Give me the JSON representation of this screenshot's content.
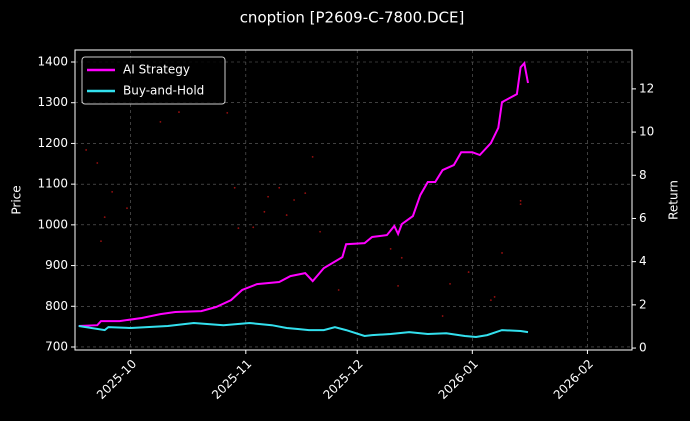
{
  "chart_data": {
    "type": "line",
    "title": "cnoption [P2609-C-7800.DCE]",
    "ylabel": "Price",
    "y2label": "Return",
    "xlim": [
      -15,
      135
    ],
    "xticks": [
      {
        "value": 0,
        "label": "2025-10"
      },
      {
        "value": 31,
        "label": "2025-11"
      },
      {
        "value": 61,
        "label": "2025-12"
      },
      {
        "value": 92,
        "label": "2026-01"
      },
      {
        "value": 123,
        "label": "2026-02"
      }
    ],
    "ylim": [
      692.6,
      1429.5
    ],
    "yticks": [
      700,
      800,
      900,
      1000,
      1100,
      1200,
      1300,
      1400
    ],
    "y2lim": [
      -0.09,
      13.8
    ],
    "y2ticks": [
      0,
      2,
      4,
      6,
      8,
      10,
      12
    ],
    "grid": true,
    "legend": "upper left",
    "price_points": {
      "color": "#ff1a1a",
      "x": [
        -12,
        -9,
        -7,
        -8,
        -5,
        -1,
        8,
        13,
        26,
        28,
        29,
        33,
        36,
        37,
        40,
        42,
        44,
        47,
        49,
        51,
        56,
        70,
        73,
        72,
        84,
        86,
        91,
        97,
        98,
        100,
        105,
        105
      ],
      "values": [
        1184,
        1152,
        1019,
        960,
        1081,
        1041,
        1253,
        1277,
        1275,
        1091,
        992,
        994,
        1032,
        1069,
        1091,
        1024,
        1061,
        1078,
        1167,
        983,
        840,
        941,
        919,
        850,
        776,
        855,
        884,
        815,
        823,
        931,
        1051,
        1059
      ]
    },
    "series": [
      {
        "name": "AI Strategy",
        "color": "#ff00ff",
        "axis": "y2",
        "x": [
          -14,
          -9,
          -8,
          -3,
          3,
          8,
          12,
          19,
          23,
          27,
          30,
          34,
          40,
          43,
          47,
          49,
          52,
          57,
          58,
          63,
          65,
          69,
          71,
          72,
          73,
          76,
          78,
          80,
          82,
          84,
          87,
          89,
          92,
          94,
          97,
          99,
          100,
          104,
          105,
          106,
          107
        ],
        "values": [
          1.02,
          1.06,
          1.25,
          1.25,
          1.39,
          1.57,
          1.67,
          1.71,
          1.9,
          2.22,
          2.69,
          2.96,
          3.06,
          3.33,
          3.47,
          3.1,
          3.7,
          4.21,
          4.81,
          4.86,
          5.14,
          5.23,
          5.65,
          5.28,
          5.74,
          6.11,
          7.08,
          7.69,
          7.69,
          8.24,
          8.47,
          9.07,
          9.07,
          8.94,
          9.49,
          10.2,
          11.39,
          11.76,
          13.0,
          13.19,
          12.27
        ]
      },
      {
        "name": "Buy-and-Hold",
        "color": "#33e0ee",
        "axis": "y2",
        "x": [
          -14,
          -7,
          -6,
          0,
          10,
          17,
          25,
          32,
          38,
          42,
          45,
          48,
          52,
          55,
          58,
          63,
          65,
          70,
          75,
          80,
          85,
          90,
          93,
          96,
          100,
          105,
          107
        ],
        "values": [
          1.02,
          0.83,
          0.97,
          0.93,
          1.02,
          1.16,
          1.06,
          1.16,
          1.06,
          0.93,
          0.88,
          0.83,
          0.83,
          0.97,
          0.83,
          0.56,
          0.6,
          0.65,
          0.74,
          0.65,
          0.69,
          0.56,
          0.51,
          0.6,
          0.83,
          0.79,
          0.74
        ]
      }
    ]
  }
}
